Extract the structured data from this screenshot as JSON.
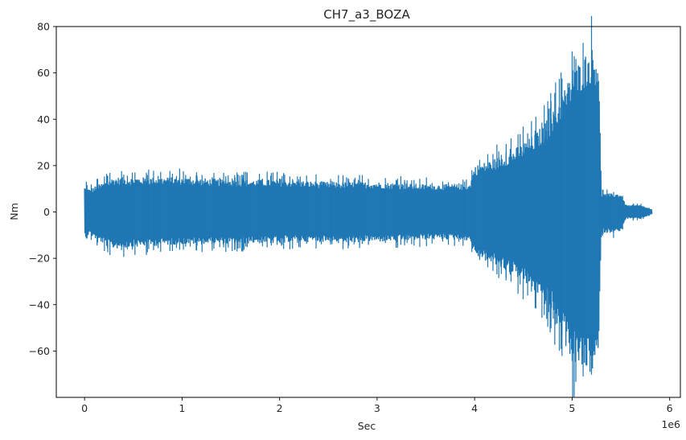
{
  "chart_data": {
    "type": "line",
    "title": "CH7_a3_BOZA",
    "xlabel": "Sec",
    "ylabel": "Nm",
    "x_offset_label": "1e6",
    "xlim": [
      -0.29,
      6.11
    ],
    "ylim": [
      -80,
      80
    ],
    "x_ticks": [
      0,
      1,
      2,
      3,
      4,
      5,
      6
    ],
    "y_ticks": [
      -60,
      -40,
      -20,
      0,
      20,
      40,
      60,
      80
    ],
    "grid": false,
    "series": [
      {
        "color": "#1f77b4",
        "envelope": {
          "x": [
            0,
            0.05,
            0.2,
            0.3,
            0.6,
            1.0,
            1.5,
            2.0,
            2.5,
            3.0,
            3.5,
            3.95,
            4.0,
            4.2,
            4.4,
            4.6,
            4.8,
            4.9,
            5.0,
            5.1,
            5.2,
            5.27,
            5.3,
            5.5,
            5.55,
            5.7,
            5.82
          ],
          "upper": [
            11,
            10,
            13,
            15,
            15,
            15,
            14,
            14,
            13,
            13,
            12,
            12,
            20,
            23,
            27,
            33,
            42,
            52,
            60,
            67,
            71,
            69,
            8,
            8,
            3,
            3,
            1
          ],
          "lower": [
            -11,
            -10,
            -14,
            -16,
            -15,
            -14,
            -14,
            -13,
            -13,
            -13,
            -12,
            -12,
            -19,
            -23,
            -27,
            -34,
            -44,
            -55,
            -64,
            -69,
            -70,
            -66,
            -9,
            -9,
            -3,
            -3,
            -1
          ]
        }
      }
    ]
  }
}
